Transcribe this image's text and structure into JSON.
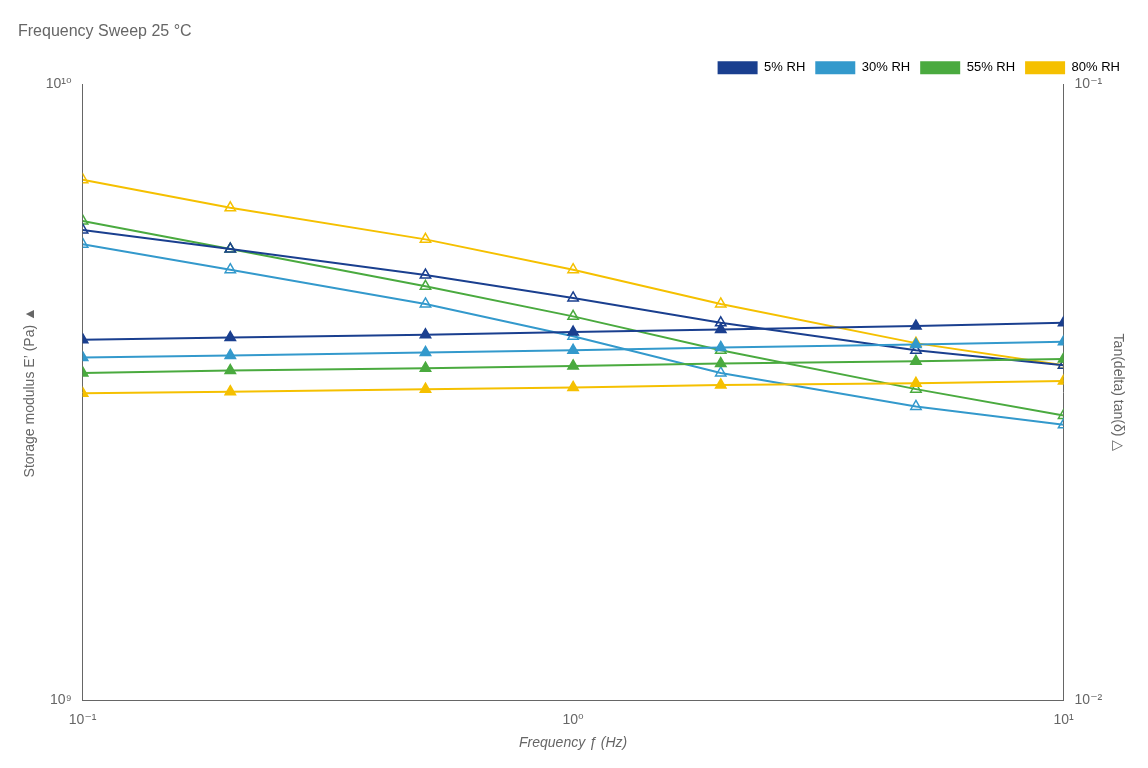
{
  "chart_data": {
    "type": "line",
    "title": "Frequency Sweep 25 °C",
    "xlabel": "Frequency ƒ (Hz)",
    "ylabel": "Storage modulus E’ (Pa) ▲",
    "y2label": "Tan(delta) tan(δ) △",
    "log": true,
    "grid": false,
    "legend": "upper right",
    "x": [
      0.1,
      0.2,
      0.5,
      1.0,
      2.0,
      5.0,
      10.0
    ],
    "xlim": [
      0.1,
      10.0
    ],
    "xticks": [
      {
        "value": 0.1,
        "label": "10⁻¹"
      },
      {
        "value": 1.0,
        "label": "10⁰"
      },
      {
        "value": 10.0,
        "label": "10¹"
      }
    ],
    "ylim": [
      1000000000,
      10000000000
    ],
    "yticks": [
      {
        "value": 1000000000,
        "label": "10⁹"
      },
      {
        "value": 10000000000,
        "label": "10¹⁰"
      }
    ],
    "y2lim": [
      0.01,
      0.1
    ],
    "y2ticks": [
      {
        "value": 0.01,
        "label": "10⁻²"
      },
      {
        "value": 0.1,
        "label": "10⁻¹"
      }
    ],
    "series": [
      {
        "name": "5% RH",
        "color": "#1a3f8f",
        "marker": "triangle",
        "line_style": "solid",
        "values": [
          3850000000.0,
          3880000000.0,
          3920000000.0,
          3960000000.0,
          4000000000.0,
          4050000000.0,
          4100000000.0
        ]
      },
      {
        "name": "30% RH",
        "color": "#3399cc",
        "marker": "triangle",
        "line_style": "solid",
        "values": [
          3600000000.0,
          3630000000.0,
          3670000000.0,
          3700000000.0,
          3740000000.0,
          3780000000.0,
          3820000000.0
        ]
      },
      {
        "name": "55% RH",
        "color": "#4aaa3f",
        "marker": "triangle",
        "line_style": "solid",
        "values": [
          3400000000.0,
          3430000000.0,
          3460000000.0,
          3490000000.0,
          3520000000.0,
          3550000000.0,
          3580000000.0
        ]
      },
      {
        "name": "80% RH",
        "color": "#f5c000",
        "marker": "triangle",
        "line_style": "solid",
        "values": [
          3150000000.0,
          3170000000.0,
          3200000000.0,
          3220000000.0,
          3250000000.0,
          3270000000.0,
          3300000000.0
        ]
      },
      {
        "name": "5% RH",
        "color": "#1a3f8f",
        "marker": "open_triangle",
        "line_style": "solid",
        "axis": "y2",
        "values": [
          0.058,
          0.054,
          0.049,
          0.045,
          0.041,
          0.037,
          0.035
        ]
      },
      {
        "name": "30% RH",
        "color": "#3399cc",
        "marker": "open_triangle",
        "line_style": "solid",
        "axis": "y2",
        "values": [
          0.055,
          0.05,
          0.044,
          0.039,
          0.034,
          0.03,
          0.028
        ]
      },
      {
        "name": "55% RH",
        "color": "#4aaa3f",
        "marker": "open_triangle",
        "line_style": "solid",
        "axis": "y2",
        "values": [
          0.06,
          0.054,
          0.047,
          0.042,
          0.037,
          0.032,
          0.029
        ]
      },
      {
        "name": "80% RH",
        "color": "#f5c000",
        "marker": "open_triangle",
        "line_style": "solid",
        "axis": "y2",
        "values": [
          0.07,
          0.063,
          0.056,
          0.05,
          0.044,
          0.038,
          0.035
        ]
      }
    ]
  }
}
